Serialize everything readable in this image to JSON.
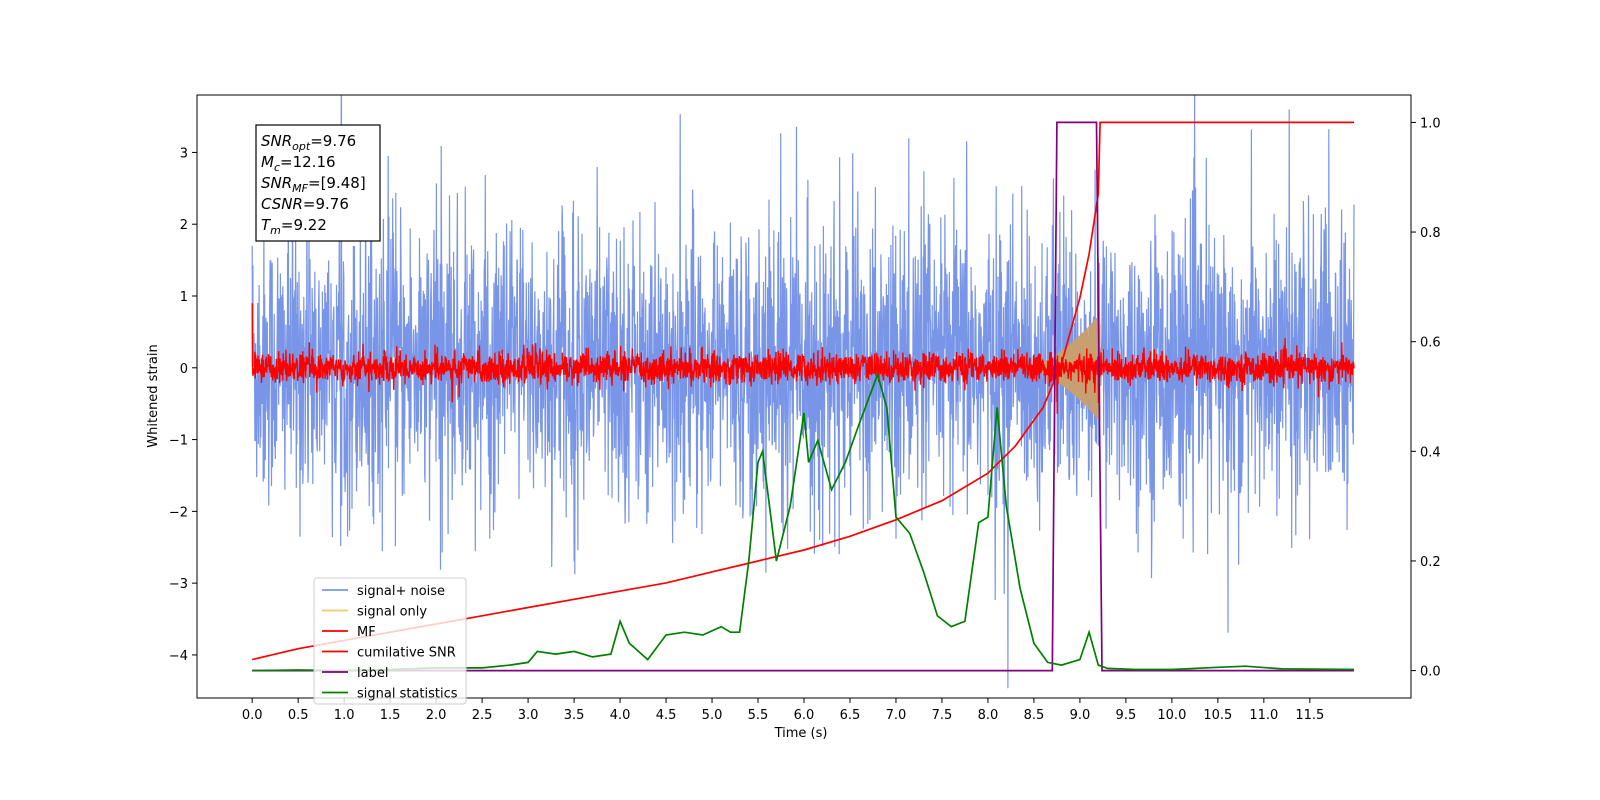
{
  "chart_data": {
    "type": "line",
    "title": "",
    "xlabel": "Time (s)",
    "ylabel": "Whitened strain",
    "xlim": [
      -0.6,
      12.6
    ],
    "ylim_left": [
      -4.6,
      3.8
    ],
    "ylim_right": [
      -0.05,
      1.05
    ],
    "x_ticks": [
      "0.0",
      "0.5",
      "1.0",
      "1.5",
      "2.0",
      "2.5",
      "3.0",
      "3.5",
      "4.0",
      "4.5",
      "5.0",
      "5.5",
      "6.0",
      "6.5",
      "7.0",
      "7.5",
      "8.0",
      "8.5",
      "9.0",
      "9.5",
      "10.0",
      "10.5",
      "11.0",
      "11.5"
    ],
    "y_ticks_left": [
      "3",
      "2",
      "1",
      "0",
      "−1",
      "−2",
      "−3",
      "−4"
    ],
    "y_ticks_right": [
      "1.0",
      "0.8",
      "0.6",
      "0.4",
      "0.2",
      "0.0"
    ],
    "grid": false,
    "legend_position": "lower-left",
    "info_box": [
      {
        "main": "SNR",
        "sub": "opt",
        "value": "=9.76"
      },
      {
        "main": "M",
        "sub": "c",
        "value": "=12.16"
      },
      {
        "main": "SNR",
        "sub": "MF",
        "value": "=[9.48]"
      },
      {
        "main": "CSNR",
        "sub": "",
        "value": "=9.76"
      },
      {
        "main": "T",
        "sub": "m",
        "value": "=9.22"
      }
    ],
    "series": [
      {
        "name": "signal+ noise",
        "color": "#7895e8",
        "axis": "left",
        "kind": "noise",
        "x_range": [
          0,
          11.98
        ],
        "y_center": 0.05,
        "y_spread": 1.1
      },
      {
        "name": "signal only",
        "color": "#f5c86e",
        "axis": "left",
        "kind": "chirp",
        "x_range": [
          8.4,
          9.22
        ],
        "amplitude_at_end": 0.75
      },
      {
        "name": "MF",
        "color": "#ff0000",
        "axis": "left",
        "kind": "noise",
        "x_range": [
          0,
          11.98
        ],
        "y_center": 0.0,
        "y_spread": 0.12
      },
      {
        "name": "cumilative SNR",
        "color": "#ff0000",
        "axis": "right",
        "x": [
          0,
          0.5,
          1.0,
          1.5,
          2.0,
          2.5,
          3.0,
          3.5,
          4.0,
          4.5,
          5.0,
          5.5,
          6.0,
          6.5,
          7.0,
          7.5,
          8.0,
          8.3,
          8.6,
          8.8,
          9.0,
          9.1,
          9.2,
          9.22,
          11.98
        ],
        "y": [
          0.02,
          0.04,
          0.055,
          0.07,
          0.085,
          0.1,
          0.115,
          0.13,
          0.145,
          0.16,
          0.18,
          0.2,
          0.22,
          0.245,
          0.275,
          0.31,
          0.36,
          0.41,
          0.48,
          0.56,
          0.68,
          0.76,
          0.87,
          1.0,
          1.0
        ]
      },
      {
        "name": "label",
        "color": "#800080",
        "axis": "right",
        "x": [
          0,
          8.7,
          8.75,
          9.18,
          9.24,
          11.98
        ],
        "y": [
          0,
          0,
          1.0,
          1.0,
          0,
          0
        ]
      },
      {
        "name": "signal statistics",
        "color": "#008000",
        "axis": "right",
        "x": [
          0,
          0.5,
          1.0,
          1.5,
          2.0,
          2.5,
          2.8,
          3.0,
          3.1,
          3.3,
          3.5,
          3.7,
          3.9,
          4.0,
          4.1,
          4.3,
          4.5,
          4.7,
          4.9,
          5.1,
          5.2,
          5.3,
          5.4,
          5.5,
          5.55,
          5.7,
          5.85,
          6.0,
          6.05,
          6.15,
          6.3,
          6.45,
          6.6,
          6.8,
          6.9,
          7.0,
          7.15,
          7.3,
          7.45,
          7.6,
          7.75,
          7.9,
          8.0,
          8.1,
          8.2,
          8.35,
          8.5,
          8.65,
          8.8,
          9.0,
          9.1,
          9.2,
          9.3,
          9.6,
          10.0,
          10.5,
          10.8,
          11.2,
          11.98
        ],
        "y": [
          0,
          0.001,
          0.0,
          0.002,
          0.005,
          0.005,
          0.01,
          0.015,
          0.035,
          0.03,
          0.035,
          0.025,
          0.03,
          0.09,
          0.05,
          0.02,
          0.065,
          0.07,
          0.065,
          0.08,
          0.07,
          0.07,
          0.2,
          0.38,
          0.4,
          0.2,
          0.3,
          0.47,
          0.38,
          0.42,
          0.33,
          0.38,
          0.45,
          0.54,
          0.48,
          0.28,
          0.25,
          0.18,
          0.1,
          0.08,
          0.09,
          0.27,
          0.28,
          0.48,
          0.3,
          0.15,
          0.05,
          0.015,
          0.01,
          0.02,
          0.07,
          0.01,
          0.004,
          0.002,
          0.002,
          0.006,
          0.008,
          0.003,
          0.002
        ]
      }
    ]
  }
}
